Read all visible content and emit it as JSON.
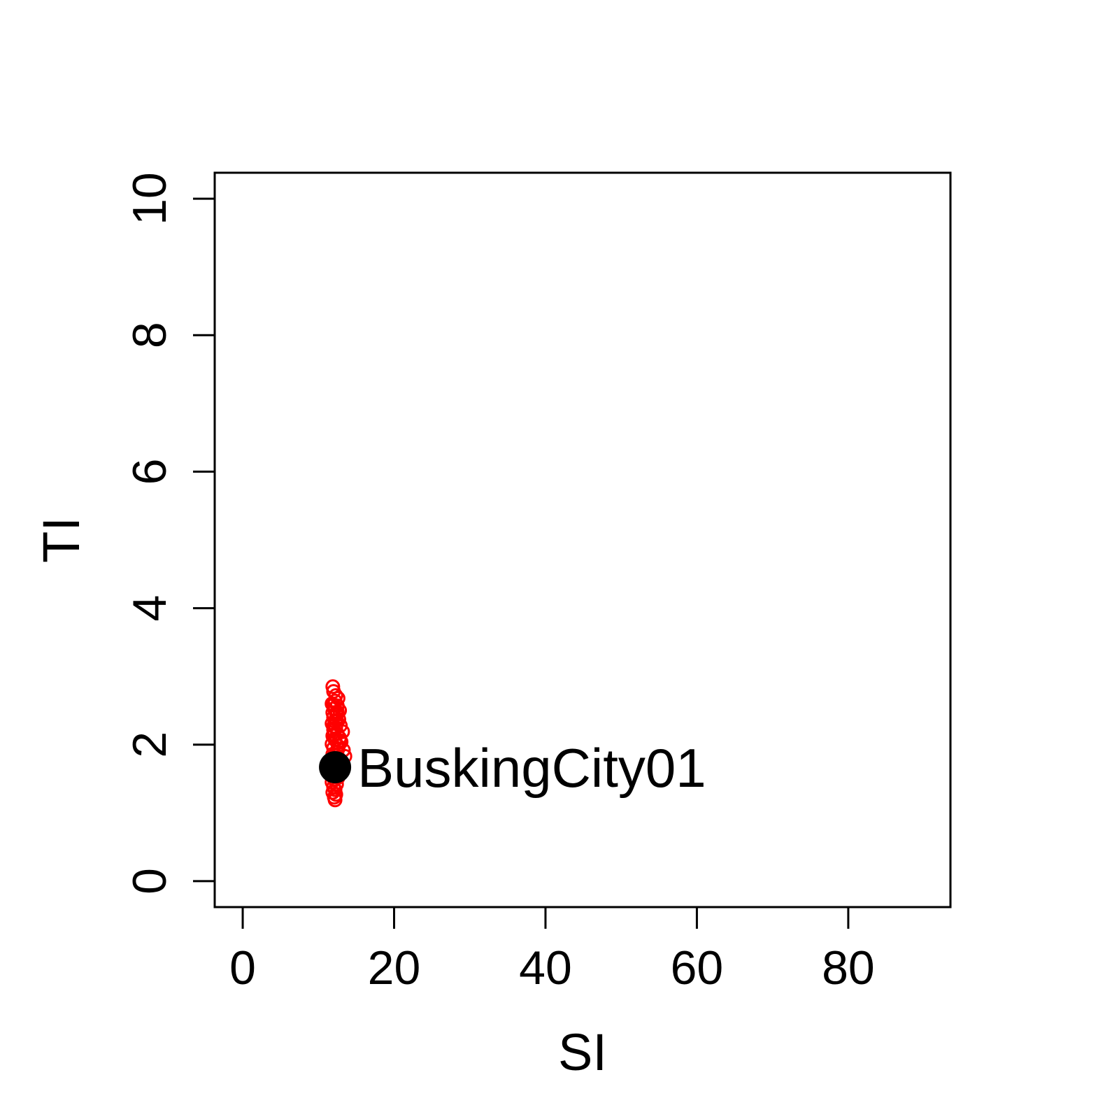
{
  "chart_data": {
    "type": "scatter",
    "title": "",
    "xlabel": "SI",
    "ylabel": "TI",
    "xlim": [
      -3.7,
      93.5
    ],
    "ylim": [
      -0.38,
      10.38
    ],
    "xticks": [
      0,
      20,
      40,
      60,
      80
    ],
    "yticks": [
      0,
      2,
      4,
      6,
      8,
      10
    ],
    "xtick_labels": [
      "0",
      "20",
      "40",
      "60",
      "80"
    ],
    "ytick_labels": [
      "0",
      "2",
      "4",
      "6",
      "8",
      "10"
    ],
    "grid": false,
    "legend": "none",
    "series": [
      {
        "marker": "open-circle",
        "color": "#ff0000",
        "points": [
          [
            11.9,
            2.85
          ],
          [
            12.0,
            2.78
          ],
          [
            12.3,
            2.72
          ],
          [
            12.6,
            2.68
          ],
          [
            12.2,
            2.64
          ],
          [
            11.8,
            2.6
          ],
          [
            12.5,
            2.57
          ],
          [
            12.1,
            2.53
          ],
          [
            12.8,
            2.5
          ],
          [
            11.9,
            2.47
          ],
          [
            12.4,
            2.44
          ],
          [
            12.0,
            2.4
          ],
          [
            12.7,
            2.37
          ],
          [
            12.2,
            2.34
          ],
          [
            11.8,
            2.31
          ],
          [
            12.9,
            2.28
          ],
          [
            12.3,
            2.25
          ],
          [
            12.0,
            2.22
          ],
          [
            13.2,
            2.19
          ],
          [
            12.5,
            2.16
          ],
          [
            11.9,
            2.13
          ],
          [
            12.8,
            2.1
          ],
          [
            12.2,
            2.07
          ],
          [
            13.0,
            2.04
          ],
          [
            11.8,
            2.01
          ],
          [
            12.6,
            1.98
          ],
          [
            12.0,
            1.95
          ],
          [
            13.3,
            1.92
          ],
          [
            12.4,
            1.89
          ],
          [
            11.9,
            1.86
          ],
          [
            13.5,
            1.83
          ],
          [
            12.7,
            1.8
          ],
          [
            12.1,
            1.77
          ],
          [
            13.1,
            1.74
          ],
          [
            11.8,
            1.71
          ],
          [
            12.5,
            1.68
          ],
          [
            12.9,
            1.65
          ],
          [
            12.0,
            1.62
          ],
          [
            12.3,
            1.58
          ],
          [
            11.9,
            1.55
          ],
          [
            12.6,
            1.52
          ],
          [
            12.1,
            1.49
          ],
          [
            11.8,
            1.45
          ],
          [
            12.4,
            1.42
          ],
          [
            12.0,
            1.38
          ],
          [
            12.2,
            1.34
          ],
          [
            11.9,
            1.3
          ],
          [
            12.3,
            1.27
          ],
          [
            12.1,
            1.23
          ],
          [
            12.2,
            1.19
          ],
          [
            12.0,
            2.58
          ],
          [
            12.4,
            2.36
          ],
          [
            12.1,
            2.15
          ],
          [
            12.6,
            1.94
          ],
          [
            12.2,
            1.73
          ],
          [
            12.5,
            2.48
          ],
          [
            12.0,
            2.27
          ],
          [
            12.8,
            2.06
          ],
          [
            12.3,
            1.85
          ],
          [
            12.0,
            1.64
          ]
        ]
      },
      {
        "marker": "filled-circle",
        "color": "#000000",
        "points": [
          [
            12.2,
            1.67
          ]
        ]
      }
    ],
    "annotations": [
      {
        "text": "BuskingCity01",
        "x": 12.2,
        "y": 1.67
      }
    ]
  }
}
